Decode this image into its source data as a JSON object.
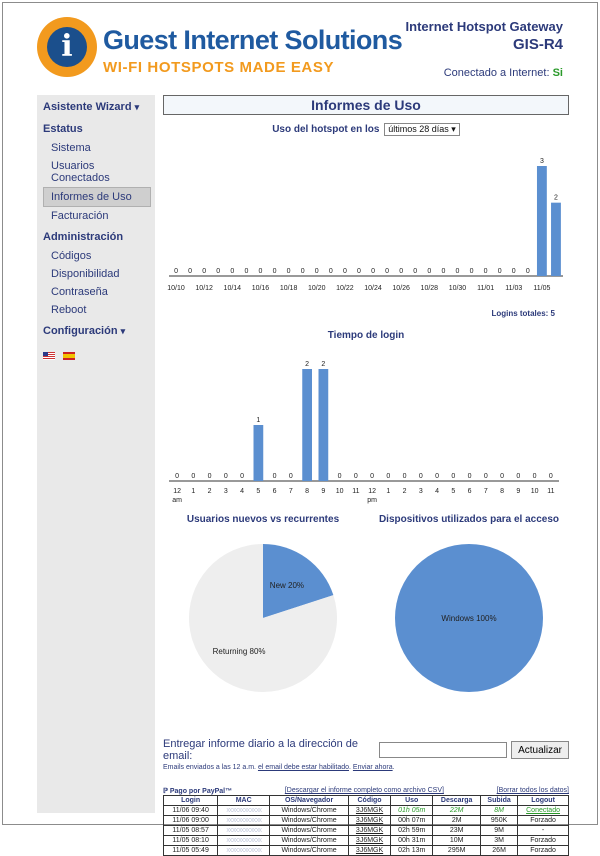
{
  "header": {
    "logo_title": "Guest Internet Solutions",
    "logo_tagline": "WI-FI HOTSPOTS MADE EASY",
    "product": "Internet Hotspot Gateway",
    "model": "GIS-R4",
    "connected_label": "Conectado a Internet:",
    "connected_value": "Si"
  },
  "sidebar": {
    "wizard": "Asistente Wizard",
    "status": "Estatus",
    "status_items": [
      "Sistema",
      "Usuarios Conectados",
      "Informes de Uso",
      "Facturación"
    ],
    "admin": "Administración",
    "admin_items": [
      "Códigos",
      "Disponibilidad",
      "Contraseña",
      "Reboot"
    ],
    "config": "Configuración"
  },
  "main": {
    "title": "Informes de Uso",
    "usage_title": "Uso del hotspot en los",
    "period_selected": "últimos 28 días",
    "logins_total": "Logins totales: 5",
    "login_time_title": "Tiempo de login",
    "pie1_title": "Usuarios nuevos vs recurrentes",
    "pie2_title": "Dispositivos utilizados para el acceso",
    "email_label": "Entregar informe diario a la dirección de email:",
    "email_value": "",
    "update_button": "Actualizar",
    "email_note_1": "Emails enviados a las 12 a.m.",
    "email_note_link": "el email debe estar habilitado",
    "email_note_2": ".",
    "send_now": "Enviar ahora",
    "paypal": "Pago por PayPal™",
    "csv_link": "[Descargar el informe completo como archivo CSV]",
    "clear_link": "[Borrar todos los datos]"
  },
  "chart_data": [
    {
      "type": "bar",
      "title": "Uso del hotspot en los últimos 28 días",
      "x_tick_labels": [
        "10/10",
        "10/12",
        "10/14",
        "10/16",
        "10/18",
        "10/20",
        "10/22",
        "10/24",
        "10/26",
        "10/28",
        "10/30",
        "11/01",
        "11/03",
        "11/05"
      ],
      "values": [
        0,
        0,
        0,
        0,
        0,
        0,
        0,
        0,
        0,
        0,
        0,
        0,
        0,
        0,
        0,
        0,
        0,
        0,
        0,
        0,
        0,
        0,
        0,
        0,
        0,
        0,
        3,
        2
      ],
      "ylim": [
        0,
        3
      ]
    },
    {
      "type": "bar",
      "title": "Tiempo de login",
      "categories": [
        "12 am",
        "1",
        "2",
        "3",
        "4",
        "5",
        "6",
        "7",
        "8",
        "9",
        "10",
        "11",
        "12 pm",
        "1",
        "2",
        "3",
        "4",
        "5",
        "6",
        "7",
        "8",
        "9",
        "10",
        "11"
      ],
      "values": [
        0,
        0,
        0,
        0,
        0,
        1,
        0,
        0,
        2,
        2,
        0,
        0,
        0,
        0,
        0,
        0,
        0,
        0,
        0,
        0,
        0,
        0,
        0,
        0
      ],
      "ylim": [
        0,
        2
      ]
    },
    {
      "type": "pie",
      "title": "Usuarios nuevos vs recurrentes",
      "labels": [
        "New 20%",
        "Returning 80%"
      ],
      "values": [
        20,
        80
      ],
      "colors": [
        "#5b8fd0",
        "#eeeeee"
      ]
    },
    {
      "type": "pie",
      "title": "Dispositivos utilizados para el acceso",
      "labels": [
        "Windows 100%"
      ],
      "values": [
        100
      ],
      "colors": [
        "#5b8fd0"
      ]
    }
  ],
  "table": {
    "headers": [
      "Login",
      "MAC",
      "OS/Navegador",
      "Código",
      "Uso",
      "Descarga",
      "Subida",
      "Logout"
    ],
    "rows": [
      [
        "11/06 09:40",
        "xx:xx:xx:xx:xx:xx",
        "Windows/Chrome",
        "3J6MGK",
        "01h 05m",
        "22M",
        "8M",
        "Conectado"
      ],
      [
        "11/06 09:00",
        "xx:xx:xx:xx:xx:xx",
        "Windows/Chrome",
        "3J6MGK",
        "00h 07m",
        "2M",
        "950K",
        "Forzado"
      ],
      [
        "11/05 08:57",
        "xx:xx:xx:xx:xx:xx",
        "Windows/Chrome",
        "3J6MGK",
        "02h 59m",
        "23M",
        "9M",
        "-"
      ],
      [
        "11/05 08:10",
        "xx:xx:xx:xx:xx:xx",
        "Windows/Chrome",
        "3J6MGK",
        "00h 31m",
        "10M",
        "3M",
        "Forzado"
      ],
      [
        "11/05 05:49",
        "xx:xx:xx:xx:xx:xx",
        "Windows/Chrome",
        "3J6MGK",
        "02h 13m",
        "295M",
        "26M",
        "Forzado"
      ]
    ]
  },
  "colors": {
    "bar": "#5b8fd0",
    "accent": "#2c3a7a",
    "orange": "#f29a1e",
    "green": "#2a9a2a"
  }
}
